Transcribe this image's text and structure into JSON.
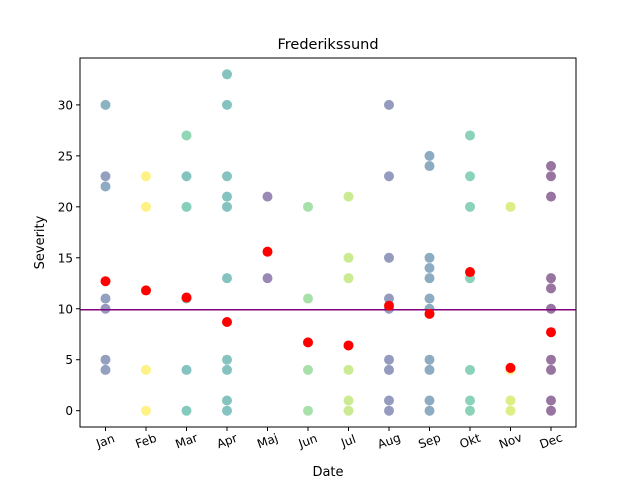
{
  "chart_data": {
    "type": "scatter",
    "title": "Frederikssund",
    "xlabel": "Date",
    "ylabel": "Severity",
    "categories": [
      "Jan",
      "Feb",
      "Mar",
      "Apr",
      "Maj",
      "Jun",
      "Jul",
      "Aug",
      "Sep",
      "Okt",
      "Nov",
      "Dec"
    ],
    "yticks": [
      0,
      5,
      10,
      15,
      20,
      25,
      30
    ],
    "ylim": [
      -1.6,
      34.6
    ],
    "grid": false,
    "legend": "none",
    "reference_line": {
      "y": 9.9,
      "color": "#800080"
    },
    "mean_color": "#ff0000",
    "points": {
      "Jan": [
        [
          30,
          "#2c728e"
        ],
        [
          23,
          "#3b528b"
        ],
        [
          22,
          "#31688e"
        ],
        [
          11,
          "#3b528b"
        ],
        [
          10,
          "#414487"
        ],
        [
          5,
          "#3b528b"
        ],
        [
          4,
          "#3b528b"
        ]
      ],
      "Feb": [
        [
          23,
          "#fde725"
        ],
        [
          20,
          "#fde725"
        ],
        [
          4,
          "#fde725"
        ],
        [
          0,
          "#fde725"
        ]
      ],
      "Mar": [
        [
          27,
          "#35b779"
        ],
        [
          23,
          "#21918c"
        ],
        [
          20,
          "#22a884"
        ],
        [
          11,
          "#1f9e89"
        ],
        [
          4,
          "#21918c"
        ],
        [
          0,
          "#1fa187"
        ]
      ],
      "Apr": [
        [
          33,
          "#21918c"
        ],
        [
          30,
          "#21918c"
        ],
        [
          23,
          "#21918c"
        ],
        [
          21,
          "#21918c"
        ],
        [
          20,
          "#21918c"
        ],
        [
          13,
          "#21918c"
        ],
        [
          5,
          "#21918c"
        ],
        [
          4,
          "#21918c"
        ],
        [
          1,
          "#21918c"
        ],
        [
          0,
          "#21918c"
        ]
      ],
      "Maj": [
        [
          21,
          "#482878"
        ],
        [
          13,
          "#482878"
        ]
      ],
      "Jun": [
        [
          20,
          "#5ec962"
        ],
        [
          11,
          "#5ec962"
        ],
        [
          4,
          "#5ec962"
        ],
        [
          0,
          "#5ec962"
        ]
      ],
      "Jul": [
        [
          21,
          "#a0da39"
        ],
        [
          15,
          "#a0da39"
        ],
        [
          13,
          "#a0da39"
        ],
        [
          4,
          "#a0da39"
        ],
        [
          1,
          "#a0da39"
        ],
        [
          0,
          "#a0da39"
        ]
      ],
      "Aug": [
        [
          30,
          "#3e4989"
        ],
        [
          23,
          "#3e4989"
        ],
        [
          15,
          "#3e4989"
        ],
        [
          11,
          "#3e4989"
        ],
        [
          10,
          "#3e4989"
        ],
        [
          5,
          "#3e4989"
        ],
        [
          4,
          "#3e4989"
        ],
        [
          1,
          "#3e4989"
        ],
        [
          0,
          "#3e4989"
        ]
      ],
      "Sep": [
        [
          25,
          "#31688e"
        ],
        [
          24,
          "#31688e"
        ],
        [
          15,
          "#31688e"
        ],
        [
          14,
          "#31688e"
        ],
        [
          13,
          "#31688e"
        ],
        [
          11,
          "#31688e"
        ],
        [
          10,
          "#31688e"
        ],
        [
          5,
          "#31688e"
        ],
        [
          4,
          "#31688e"
        ],
        [
          1,
          "#31688e"
        ],
        [
          0,
          "#31688e"
        ]
      ],
      "Okt": [
        [
          27,
          "#29af7f"
        ],
        [
          23,
          "#29af7f"
        ],
        [
          20,
          "#29af7f"
        ],
        [
          13,
          "#29af7f"
        ],
        [
          4,
          "#29af7f"
        ],
        [
          1,
          "#29af7f"
        ],
        [
          0,
          "#29af7f"
        ]
      ],
      "Nov": [
        [
          20,
          "#c2df23"
        ],
        [
          4,
          "#fde725"
        ],
        [
          1,
          "#c2df23"
        ],
        [
          0,
          "#c2df23"
        ]
      ],
      "Dec": [
        [
          24,
          "#440154"
        ],
        [
          23,
          "#440154"
        ],
        [
          21,
          "#440154"
        ],
        [
          13,
          "#440154"
        ],
        [
          12,
          "#440154"
        ],
        [
          10,
          "#440154"
        ],
        [
          5,
          "#440154"
        ],
        [
          4,
          "#440154"
        ],
        [
          1,
          "#440154"
        ],
        [
          0,
          "#440154"
        ]
      ]
    },
    "means": [
      12.7,
      11.8,
      11.1,
      8.7,
      15.6,
      6.7,
      6.4,
      10.3,
      9.5,
      13.6,
      4.2,
      7.7
    ]
  }
}
